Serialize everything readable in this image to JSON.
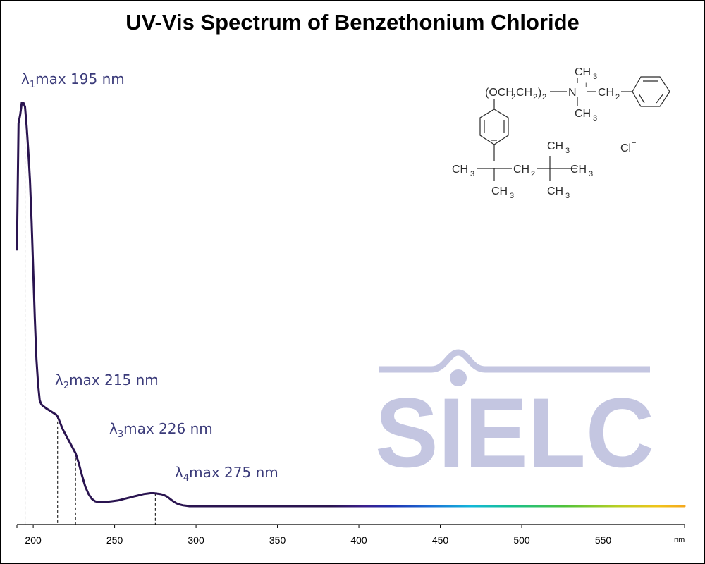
{
  "chart_data": {
    "type": "line",
    "title": "UV-Vis Spectrum of Benzethonium Chloride",
    "xlabel": "nm",
    "ylabel": "",
    "xlim": [
      190,
      600
    ],
    "ylim": [
      0,
      1
    ],
    "x_ticks": [
      200,
      250,
      300,
      350,
      400,
      450,
      500,
      550
    ],
    "grid": false,
    "series": [
      {
        "x": [
          190,
          191,
          192,
          193,
          194,
          195,
          196,
          197,
          198,
          199,
          200,
          201,
          202,
          203,
          204,
          205,
          206,
          207,
          208,
          210,
          212,
          214,
          215,
          216,
          218,
          220,
          222,
          224,
          226,
          228,
          230,
          232,
          234,
          236,
          238,
          240,
          242,
          244,
          246,
          248,
          250,
          252,
          254,
          256,
          258,
          260,
          262,
          264,
          266,
          268,
          270,
          272,
          274,
          276,
          278,
          280,
          282,
          284,
          286,
          288,
          290,
          292,
          294,
          296,
          300,
          350,
          400,
          450,
          500,
          550,
          600
        ],
        "y": [
          0.63,
          0.94,
          0.96,
          0.99,
          0.99,
          0.98,
          0.93,
          0.87,
          0.8,
          0.7,
          0.58,
          0.46,
          0.36,
          0.3,
          0.26,
          0.25,
          0.246,
          0.243,
          0.24,
          0.235,
          0.23,
          0.225,
          0.22,
          0.21,
          0.19,
          0.175,
          0.16,
          0.145,
          0.13,
          0.105,
          0.075,
          0.048,
          0.03,
          0.018,
          0.012,
          0.01,
          0.01,
          0.01,
          0.011,
          0.012,
          0.013,
          0.014,
          0.016,
          0.018,
          0.02,
          0.022,
          0.024,
          0.026,
          0.028,
          0.03,
          0.031,
          0.032,
          0.032,
          0.031,
          0.03,
          0.028,
          0.024,
          0.018,
          0.012,
          0.007,
          0.004,
          0.002,
          0.001,
          0.0,
          0.0,
          0.0,
          0.0,
          0.0,
          0.0,
          0.0,
          0.0
        ]
      }
    ],
    "peaks": [
      {
        "lambda": "λ",
        "sub": "1",
        "text": "max  195 nm",
        "x": 195
      },
      {
        "lambda": "λ",
        "sub": "2",
        "text": "max  215 nm",
        "x": 215
      },
      {
        "lambda": "λ",
        "sub": "3",
        "text": "max  226 nm",
        "x": 226
      },
      {
        "lambda": "λ",
        "sub": "4",
        "text": "max  275 nm",
        "x": 275
      }
    ]
  },
  "structure": {
    "chain": "(OCH",
    "chain_mid": "CH",
    "sub2": "2",
    "chain_end": ")",
    "n": "N",
    "plus": "+",
    "ch3": "CH",
    "sub3": "3",
    "ch2": "CH",
    "cl": "Cl",
    "minus": "−"
  },
  "watermark": {
    "text": "SIELC"
  },
  "colors": {
    "line": "#2a1450",
    "label": "#3b3b7a",
    "watermark": "#c4c6e1"
  }
}
